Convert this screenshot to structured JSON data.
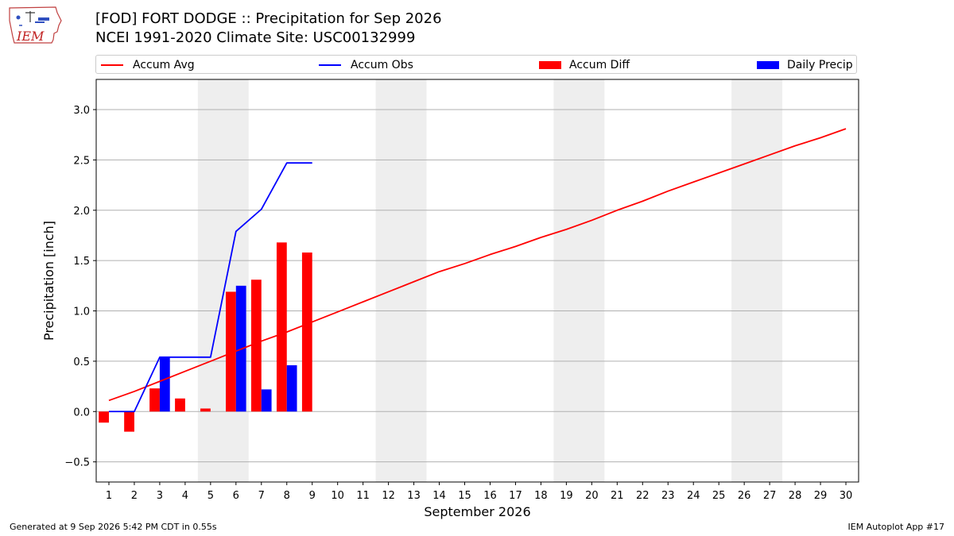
{
  "header": {
    "title_line1": "[FOD] FORT DODGE :: Precipitation for Sep 2026",
    "title_line2": "NCEI 1991-2020 Climate Site: USC00132999"
  },
  "logo": {
    "text": "IEM",
    "icon": "iem-iowa-logo"
  },
  "legend": {
    "items": [
      {
        "label": "Accum Avg",
        "kind": "line",
        "color": "#ff0000"
      },
      {
        "label": "Accum Obs",
        "kind": "line",
        "color": "#0000ff"
      },
      {
        "label": "Accum Diff",
        "kind": "bar",
        "color": "#ff0000"
      },
      {
        "label": "Daily Precip",
        "kind": "bar",
        "color": "#0000ff"
      }
    ]
  },
  "chart_data": {
    "type": "bar",
    "title": "[FOD] FORT DODGE :: Precipitation for Sep 2026",
    "subtitle": "NCEI 1991-2020 Climate Site: USC00132999",
    "xlabel": "September 2026",
    "ylabel": "Precipitation [inch]",
    "ylim": [
      -0.7,
      3.3
    ],
    "xlim": [
      0.5,
      30.5
    ],
    "yticks": [
      -0.5,
      0.0,
      0.5,
      1.0,
      1.5,
      2.0,
      2.5,
      3.0
    ],
    "ytick_labels": [
      "−0.5",
      "0.0",
      "0.5",
      "1.0",
      "1.5",
      "2.0",
      "2.5",
      "3.0"
    ],
    "x": [
      1,
      2,
      3,
      4,
      5,
      6,
      7,
      8,
      9,
      10,
      11,
      12,
      13,
      14,
      15,
      16,
      17,
      18,
      19,
      20,
      21,
      22,
      23,
      24,
      25,
      26,
      27,
      28,
      29,
      30
    ],
    "grid": "horizontal",
    "weekend_shading": [
      [
        4.5,
        6.5
      ],
      [
        11.5,
        13.5
      ],
      [
        18.5,
        20.5
      ],
      [
        25.5,
        27.5
      ]
    ],
    "series": [
      {
        "name": "Accum Avg",
        "kind": "line",
        "color": "#ff0000",
        "x": [
          1,
          2,
          3,
          4,
          5,
          6,
          7,
          8,
          9,
          10,
          11,
          12,
          13,
          14,
          15,
          16,
          17,
          18,
          19,
          20,
          21,
          22,
          23,
          24,
          25,
          26,
          27,
          28,
          29,
          30
        ],
        "values": [
          0.11,
          0.2,
          0.3,
          0.4,
          0.5,
          0.6,
          0.7,
          0.79,
          0.89,
          0.99,
          1.09,
          1.19,
          1.29,
          1.39,
          1.47,
          1.56,
          1.64,
          1.73,
          1.81,
          1.9,
          2.0,
          2.09,
          2.19,
          2.28,
          2.37,
          2.46,
          2.55,
          2.64,
          2.72,
          2.81
        ]
      },
      {
        "name": "Accum Obs",
        "kind": "line",
        "color": "#0000ff",
        "x": [
          1,
          2,
          3,
          4,
          5,
          6,
          7,
          8,
          9
        ],
        "values": [
          0.0,
          0.0,
          0.54,
          0.54,
          0.54,
          1.79,
          2.01,
          2.47,
          2.47
        ]
      },
      {
        "name": "Accum Diff",
        "kind": "bar",
        "color": "#ff0000",
        "x": [
          1,
          2,
          3,
          4,
          5,
          6,
          7,
          8,
          9
        ],
        "values": [
          -0.11,
          -0.2,
          0.23,
          0.13,
          0.03,
          1.19,
          1.31,
          1.68,
          1.58
        ]
      },
      {
        "name": "Daily Precip",
        "kind": "bar",
        "color": "#0000ff",
        "x": [
          3,
          6,
          7,
          8
        ],
        "values": [
          0.54,
          1.25,
          0.22,
          0.46
        ]
      }
    ]
  },
  "footer": {
    "left": "Generated at 9 Sep 2026 5:42 PM CDT in 0.55s",
    "right": "IEM Autoplot App #17"
  }
}
